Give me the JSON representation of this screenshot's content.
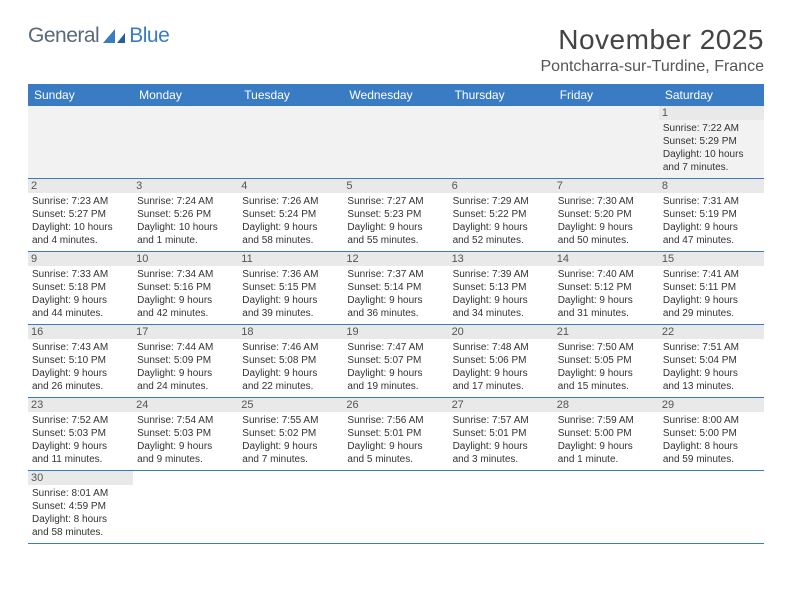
{
  "logo": {
    "part1": "General",
    "part2": "Blue"
  },
  "title": "November 2025",
  "location": "Pontcharra-sur-Turdine, France",
  "weekdays": [
    "Sunday",
    "Monday",
    "Tuesday",
    "Wednesday",
    "Thursday",
    "Friday",
    "Saturday"
  ],
  "colors": {
    "header_bg": "#3a7cc4",
    "header_text": "#ffffff",
    "daynum_bg": "#e9e9e9",
    "border": "#3a7cc4"
  },
  "weeks": [
    [
      null,
      null,
      null,
      null,
      null,
      null,
      {
        "n": "1",
        "sr": "Sunrise: 7:22 AM",
        "ss": "Sunset: 5:29 PM",
        "d1": "Daylight: 10 hours",
        "d2": "and 7 minutes."
      }
    ],
    [
      {
        "n": "2",
        "sr": "Sunrise: 7:23 AM",
        "ss": "Sunset: 5:27 PM",
        "d1": "Daylight: 10 hours",
        "d2": "and 4 minutes."
      },
      {
        "n": "3",
        "sr": "Sunrise: 7:24 AM",
        "ss": "Sunset: 5:26 PM",
        "d1": "Daylight: 10 hours",
        "d2": "and 1 minute."
      },
      {
        "n": "4",
        "sr": "Sunrise: 7:26 AM",
        "ss": "Sunset: 5:24 PM",
        "d1": "Daylight: 9 hours",
        "d2": "and 58 minutes."
      },
      {
        "n": "5",
        "sr": "Sunrise: 7:27 AM",
        "ss": "Sunset: 5:23 PM",
        "d1": "Daylight: 9 hours",
        "d2": "and 55 minutes."
      },
      {
        "n": "6",
        "sr": "Sunrise: 7:29 AM",
        "ss": "Sunset: 5:22 PM",
        "d1": "Daylight: 9 hours",
        "d2": "and 52 minutes."
      },
      {
        "n": "7",
        "sr": "Sunrise: 7:30 AM",
        "ss": "Sunset: 5:20 PM",
        "d1": "Daylight: 9 hours",
        "d2": "and 50 minutes."
      },
      {
        "n": "8",
        "sr": "Sunrise: 7:31 AM",
        "ss": "Sunset: 5:19 PM",
        "d1": "Daylight: 9 hours",
        "d2": "and 47 minutes."
      }
    ],
    [
      {
        "n": "9",
        "sr": "Sunrise: 7:33 AM",
        "ss": "Sunset: 5:18 PM",
        "d1": "Daylight: 9 hours",
        "d2": "and 44 minutes."
      },
      {
        "n": "10",
        "sr": "Sunrise: 7:34 AM",
        "ss": "Sunset: 5:16 PM",
        "d1": "Daylight: 9 hours",
        "d2": "and 42 minutes."
      },
      {
        "n": "11",
        "sr": "Sunrise: 7:36 AM",
        "ss": "Sunset: 5:15 PM",
        "d1": "Daylight: 9 hours",
        "d2": "and 39 minutes."
      },
      {
        "n": "12",
        "sr": "Sunrise: 7:37 AM",
        "ss": "Sunset: 5:14 PM",
        "d1": "Daylight: 9 hours",
        "d2": "and 36 minutes."
      },
      {
        "n": "13",
        "sr": "Sunrise: 7:39 AM",
        "ss": "Sunset: 5:13 PM",
        "d1": "Daylight: 9 hours",
        "d2": "and 34 minutes."
      },
      {
        "n": "14",
        "sr": "Sunrise: 7:40 AM",
        "ss": "Sunset: 5:12 PM",
        "d1": "Daylight: 9 hours",
        "d2": "and 31 minutes."
      },
      {
        "n": "15",
        "sr": "Sunrise: 7:41 AM",
        "ss": "Sunset: 5:11 PM",
        "d1": "Daylight: 9 hours",
        "d2": "and 29 minutes."
      }
    ],
    [
      {
        "n": "16",
        "sr": "Sunrise: 7:43 AM",
        "ss": "Sunset: 5:10 PM",
        "d1": "Daylight: 9 hours",
        "d2": "and 26 minutes."
      },
      {
        "n": "17",
        "sr": "Sunrise: 7:44 AM",
        "ss": "Sunset: 5:09 PM",
        "d1": "Daylight: 9 hours",
        "d2": "and 24 minutes."
      },
      {
        "n": "18",
        "sr": "Sunrise: 7:46 AM",
        "ss": "Sunset: 5:08 PM",
        "d1": "Daylight: 9 hours",
        "d2": "and 22 minutes."
      },
      {
        "n": "19",
        "sr": "Sunrise: 7:47 AM",
        "ss": "Sunset: 5:07 PM",
        "d1": "Daylight: 9 hours",
        "d2": "and 19 minutes."
      },
      {
        "n": "20",
        "sr": "Sunrise: 7:48 AM",
        "ss": "Sunset: 5:06 PM",
        "d1": "Daylight: 9 hours",
        "d2": "and 17 minutes."
      },
      {
        "n": "21",
        "sr": "Sunrise: 7:50 AM",
        "ss": "Sunset: 5:05 PM",
        "d1": "Daylight: 9 hours",
        "d2": "and 15 minutes."
      },
      {
        "n": "22",
        "sr": "Sunrise: 7:51 AM",
        "ss": "Sunset: 5:04 PM",
        "d1": "Daylight: 9 hours",
        "d2": "and 13 minutes."
      }
    ],
    [
      {
        "n": "23",
        "sr": "Sunrise: 7:52 AM",
        "ss": "Sunset: 5:03 PM",
        "d1": "Daylight: 9 hours",
        "d2": "and 11 minutes."
      },
      {
        "n": "24",
        "sr": "Sunrise: 7:54 AM",
        "ss": "Sunset: 5:03 PM",
        "d1": "Daylight: 9 hours",
        "d2": "and 9 minutes."
      },
      {
        "n": "25",
        "sr": "Sunrise: 7:55 AM",
        "ss": "Sunset: 5:02 PM",
        "d1": "Daylight: 9 hours",
        "d2": "and 7 minutes."
      },
      {
        "n": "26",
        "sr": "Sunrise: 7:56 AM",
        "ss": "Sunset: 5:01 PM",
        "d1": "Daylight: 9 hours",
        "d2": "and 5 minutes."
      },
      {
        "n": "27",
        "sr": "Sunrise: 7:57 AM",
        "ss": "Sunset: 5:01 PM",
        "d1": "Daylight: 9 hours",
        "d2": "and 3 minutes."
      },
      {
        "n": "28",
        "sr": "Sunrise: 7:59 AM",
        "ss": "Sunset: 5:00 PM",
        "d1": "Daylight: 9 hours",
        "d2": "and 1 minute."
      },
      {
        "n": "29",
        "sr": "Sunrise: 8:00 AM",
        "ss": "Sunset: 5:00 PM",
        "d1": "Daylight: 8 hours",
        "d2": "and 59 minutes."
      }
    ],
    [
      {
        "n": "30",
        "sr": "Sunrise: 8:01 AM",
        "ss": "Sunset: 4:59 PM",
        "d1": "Daylight: 8 hours",
        "d2": "and 58 minutes."
      },
      null,
      null,
      null,
      null,
      null,
      null
    ]
  ]
}
